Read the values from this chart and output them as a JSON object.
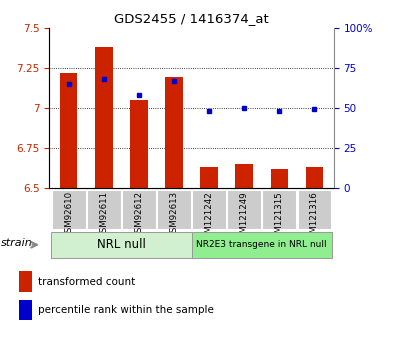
{
  "title": "GDS2455 / 1416374_at",
  "samples": [
    "GSM92610",
    "GSM92611",
    "GSM92612",
    "GSM92613",
    "GSM121242",
    "GSM121249",
    "GSM121315",
    "GSM121316"
  ],
  "red_values": [
    7.22,
    7.38,
    7.05,
    7.19,
    6.63,
    6.65,
    6.62,
    6.63
  ],
  "blue_values": [
    65,
    68,
    58,
    67,
    48,
    50,
    48,
    49
  ],
  "ylim_left": [
    6.5,
    7.5
  ],
  "ylim_right": [
    0,
    100
  ],
  "yticks_left": [
    6.5,
    6.75,
    7.0,
    7.25,
    7.5
  ],
  "yticks_right": [
    0,
    25,
    50,
    75,
    100
  ],
  "ytick_labels_left": [
    "6.5",
    "6.75",
    "7",
    "7.25",
    "7.5"
  ],
  "ytick_labels_right": [
    "0",
    "25",
    "50",
    "75",
    "100%"
  ],
  "group1_label": "NRL null",
  "group2_label": "NR2E3 transgene in NRL null",
  "group_bg1": "#d0f0d0",
  "group_bg2": "#90ee90",
  "sample_bg": "#cccccc",
  "bar_color": "#cc2200",
  "dot_color": "#0000cc",
  "bar_width": 0.5,
  "base_value": 6.5,
  "legend_red": "transformed count",
  "legend_blue": "percentile rank within the sample",
  "strain_label": "strain",
  "dotted_lines": [
    6.75,
    7.0,
    7.25
  ]
}
